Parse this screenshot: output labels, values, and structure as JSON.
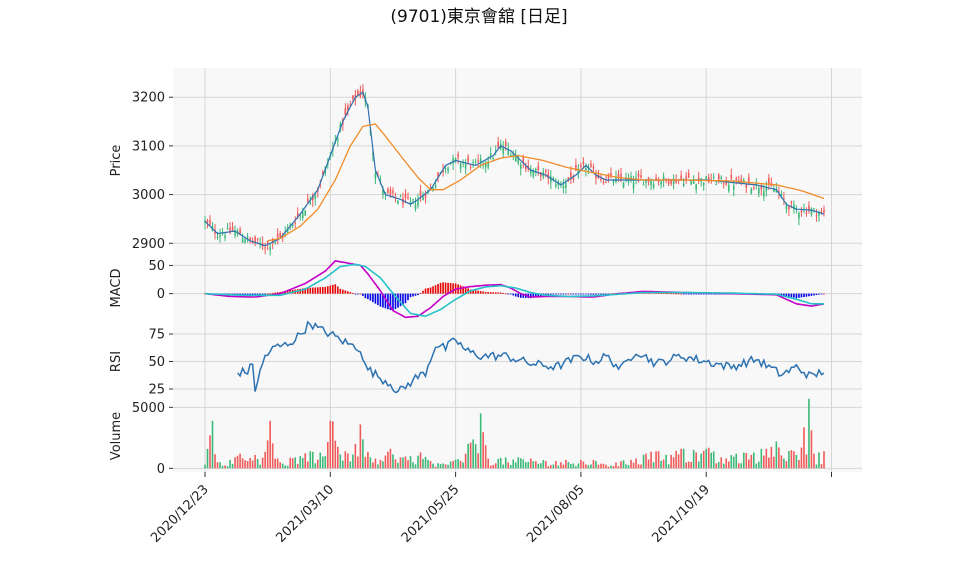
{
  "title": "(9701)東京會舘 [日足]",
  "colors": {
    "panel_bg": "#f8f8f8",
    "grid": "#d6d6d6",
    "up": "#3cb878",
    "down": "#f05a5a",
    "price_line": "#2c72b0",
    "sma25": "#f08c28",
    "macd_line": "#c300c8",
    "signal_line": "#25c2c8",
    "macd_hist_pos": "#e60000",
    "macd_hist_neg": "#0000e6",
    "rsi_line": "#2c72b0",
    "vol_up": "#3cb878",
    "vol_down": "#f05a5a"
  },
  "chart_data": {
    "type": "candlestick",
    "title": "(9701)東京會舘 [日足]",
    "x_tick_labels": [
      "2020/12/23",
      "2021/03/10",
      "2021/05/25",
      "2021/08/05",
      "2021/10/19"
    ],
    "num_bars": 250,
    "panels": [
      {
        "name": "price",
        "ylabel": "Price",
        "yticks": [
          2900,
          3000,
          3100,
          3200
        ],
        "ylim": [
          2880,
          3260
        ]
      },
      {
        "name": "macd",
        "ylabel": "MACD",
        "yticks": [
          0,
          50
        ],
        "ylim": [
          -52,
          72
        ]
      },
      {
        "name": "rsi",
        "ylabel": "RSI",
        "yticks": [
          25,
          50,
          75
        ],
        "ylim": [
          15,
          85
        ]
      },
      {
        "name": "volume",
        "ylabel": "Volume",
        "yticks": [
          0,
          5000
        ],
        "ylim": [
          -300,
          5600
        ]
      }
    ],
    "close_keypoints": [
      [
        0,
        2945
      ],
      [
        5,
        2920
      ],
      [
        12,
        2925
      ],
      [
        18,
        2905
      ],
      [
        24,
        2895
      ],
      [
        30,
        2910
      ],
      [
        38,
        2960
      ],
      [
        45,
        3010
      ],
      [
        50,
        3080
      ],
      [
        55,
        3150
      ],
      [
        60,
        3200
      ],
      [
        63,
        3210
      ],
      [
        65,
        3180
      ],
      [
        68,
        3050
      ],
      [
        72,
        3000
      ],
      [
        78,
        2990
      ],
      [
        82,
        2980
      ],
      [
        85,
        2990
      ],
      [
        90,
        3010
      ],
      [
        96,
        3060
      ],
      [
        100,
        3070
      ],
      [
        108,
        3060
      ],
      [
        115,
        3080
      ],
      [
        118,
        3100
      ],
      [
        122,
        3090
      ],
      [
        126,
        3070
      ],
      [
        130,
        3050
      ],
      [
        136,
        3040
      ],
      [
        142,
        3020
      ],
      [
        148,
        3040
      ],
      [
        152,
        3060
      ],
      [
        156,
        3040
      ],
      [
        160,
        3030
      ],
      [
        170,
        3030
      ],
      [
        180,
        3030
      ],
      [
        190,
        3030
      ],
      [
        200,
        3030
      ],
      [
        210,
        3025
      ],
      [
        220,
        3020
      ],
      [
        228,
        3010
      ],
      [
        232,
        2980
      ],
      [
        236,
        2970
      ],
      [
        242,
        2968
      ],
      [
        247,
        2960
      ]
    ],
    "sma25_keypoints": [
      [
        25,
        2905
      ],
      [
        30,
        2910
      ],
      [
        38,
        2935
      ],
      [
        45,
        2970
      ],
      [
        52,
        3030
      ],
      [
        58,
        3100
      ],
      [
        63,
        3140
      ],
      [
        68,
        3145
      ],
      [
        72,
        3120
      ],
      [
        78,
        3080
      ],
      [
        85,
        3035
      ],
      [
        90,
        3010
      ],
      [
        95,
        3010
      ],
      [
        102,
        3030
      ],
      [
        110,
        3060
      ],
      [
        118,
        3075
      ],
      [
        125,
        3080
      ],
      [
        135,
        3070
      ],
      [
        145,
        3055
      ],
      [
        155,
        3045
      ],
      [
        165,
        3035
      ],
      [
        175,
        3030
      ],
      [
        190,
        3030
      ],
      [
        210,
        3028
      ],
      [
        228,
        3020
      ],
      [
        238,
        3008
      ],
      [
        247,
        2992
      ]
    ],
    "macd_keypoints": [
      [
        0,
        0
      ],
      [
        10,
        -5
      ],
      [
        20,
        -6
      ],
      [
        30,
        0
      ],
      [
        40,
        18
      ],
      [
        48,
        40
      ],
      [
        52,
        58
      ],
      [
        56,
        55
      ],
      [
        62,
        50
      ],
      [
        65,
        35
      ],
      [
        70,
        5
      ],
      [
        75,
        -30
      ],
      [
        80,
        -42
      ],
      [
        85,
        -40
      ],
      [
        90,
        -25
      ],
      [
        95,
        -5
      ],
      [
        100,
        8
      ],
      [
        105,
        12
      ],
      [
        112,
        15
      ],
      [
        118,
        16
      ],
      [
        122,
        10
      ],
      [
        126,
        0
      ],
      [
        130,
        -6
      ],
      [
        136,
        -5
      ],
      [
        145,
        -5
      ],
      [
        155,
        -6
      ],
      [
        165,
        0
      ],
      [
        175,
        4
      ],
      [
        190,
        2
      ],
      [
        210,
        0
      ],
      [
        228,
        -2
      ],
      [
        236,
        -18
      ],
      [
        242,
        -22
      ],
      [
        247,
        -18
      ]
    ],
    "signal_keypoints": [
      [
        0,
        0
      ],
      [
        15,
        -3
      ],
      [
        30,
        -3
      ],
      [
        40,
        8
      ],
      [
        48,
        28
      ],
      [
        54,
        48
      ],
      [
        60,
        52
      ],
      [
        64,
        48
      ],
      [
        70,
        28
      ],
      [
        76,
        -5
      ],
      [
        82,
        -35
      ],
      [
        88,
        -40
      ],
      [
        94,
        -28
      ],
      [
        100,
        -10
      ],
      [
        106,
        5
      ],
      [
        112,
        12
      ],
      [
        118,
        14
      ],
      [
        124,
        10
      ],
      [
        130,
        2
      ],
      [
        136,
        -3
      ],
      [
        145,
        -5
      ],
      [
        155,
        -4
      ],
      [
        165,
        -1
      ],
      [
        175,
        2
      ],
      [
        190,
        2
      ],
      [
        210,
        1
      ],
      [
        228,
        -1
      ],
      [
        236,
        -10
      ],
      [
        242,
        -18
      ],
      [
        247,
        -18
      ]
    ],
    "rsi_keypoints": [
      [
        13,
        40
      ],
      [
        17,
        41
      ],
      [
        19,
        47
      ],
      [
        20,
        25
      ],
      [
        24,
        55
      ],
      [
        28,
        63
      ],
      [
        32,
        65
      ],
      [
        36,
        70
      ],
      [
        42,
        85
      ],
      [
        45,
        80
      ],
      [
        50,
        75
      ],
      [
        54,
        70
      ],
      [
        58,
        65
      ],
      [
        62,
        62
      ],
      [
        64,
        45
      ],
      [
        70,
        35
      ],
      [
        74,
        30
      ],
      [
        77,
        22
      ],
      [
        80,
        27
      ],
      [
        84,
        35
      ],
      [
        88,
        40
      ],
      [
        92,
        65
      ],
      [
        96,
        62
      ],
      [
        100,
        70
      ],
      [
        104,
        60
      ],
      [
        110,
        55
      ],
      [
        120,
        55
      ],
      [
        130,
        48
      ],
      [
        140,
        45
      ],
      [
        150,
        55
      ],
      [
        156,
        50
      ],
      [
        160,
        55
      ],
      [
        166,
        43
      ],
      [
        172,
        60
      ],
      [
        180,
        48
      ],
      [
        190,
        55
      ],
      [
        200,
        50
      ],
      [
        210,
        45
      ],
      [
        220,
        52
      ],
      [
        230,
        38
      ],
      [
        236,
        45
      ],
      [
        242,
        36
      ],
      [
        247,
        42
      ]
    ],
    "volume_keypoints": [
      [
        0,
        300
      ],
      [
        3,
        3900
      ],
      [
        6,
        500
      ],
      [
        10,
        700
      ],
      [
        14,
        1200
      ],
      [
        17,
        600
      ],
      [
        20,
        1100
      ],
      [
        22,
        300
      ],
      [
        26,
        3900
      ],
      [
        30,
        500
      ],
      [
        36,
        900
      ],
      [
        42,
        1400
      ],
      [
        48,
        1000
      ],
      [
        50,
        3900
      ],
      [
        56,
        1400
      ],
      [
        60,
        2000
      ],
      [
        62,
        3600
      ],
      [
        66,
        900
      ],
      [
        70,
        700
      ],
      [
        74,
        1600
      ],
      [
        78,
        900
      ],
      [
        82,
        1000
      ],
      [
        86,
        1300
      ],
      [
        90,
        600
      ],
      [
        95,
        400
      ],
      [
        100,
        700
      ],
      [
        104,
        1200
      ],
      [
        110,
        4500
      ],
      [
        113,
        800
      ],
      [
        120,
        900
      ],
      [
        130,
        800
      ],
      [
        140,
        600
      ],
      [
        150,
        700
      ],
      [
        156,
        600
      ],
      [
        160,
        300
      ],
      [
        170,
        700
      ],
      [
        176,
        1200
      ],
      [
        180,
        1400
      ],
      [
        186,
        1100
      ],
      [
        190,
        1600
      ],
      [
        196,
        1300
      ],
      [
        200,
        1600
      ],
      [
        206,
        900
      ],
      [
        212,
        1200
      ],
      [
        218,
        1100
      ],
      [
        224,
        1600
      ],
      [
        228,
        2200
      ],
      [
        231,
        800
      ],
      [
        234,
        1500
      ],
      [
        238,
        1700
      ],
      [
        241,
        5700
      ],
      [
        243,
        1200
      ],
      [
        247,
        1400
      ]
    ]
  }
}
